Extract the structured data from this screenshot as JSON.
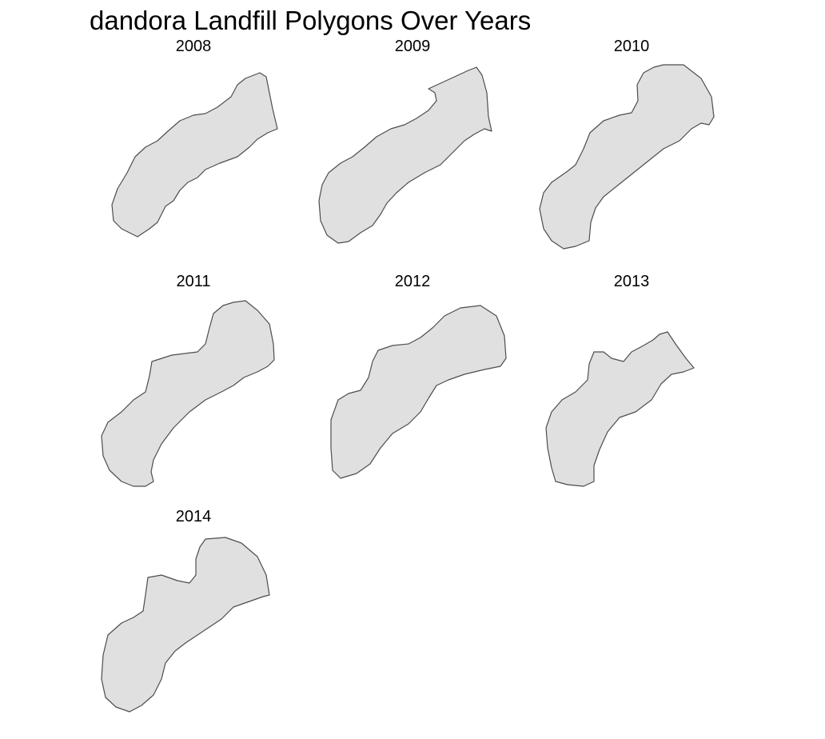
{
  "chart_data": {
    "type": "map-facets",
    "title": "dandora Landfill Polygons Over Years",
    "facets": [
      "2008",
      "2009",
      "2010",
      "2011",
      "2012",
      "2013",
      "2014"
    ],
    "grid": "3 columns x 3 rows",
    "axes": "none",
    "legend": "none",
    "colors": {
      "fill": "#e0e0e0",
      "stroke": "#4d4d4d"
    }
  }
}
